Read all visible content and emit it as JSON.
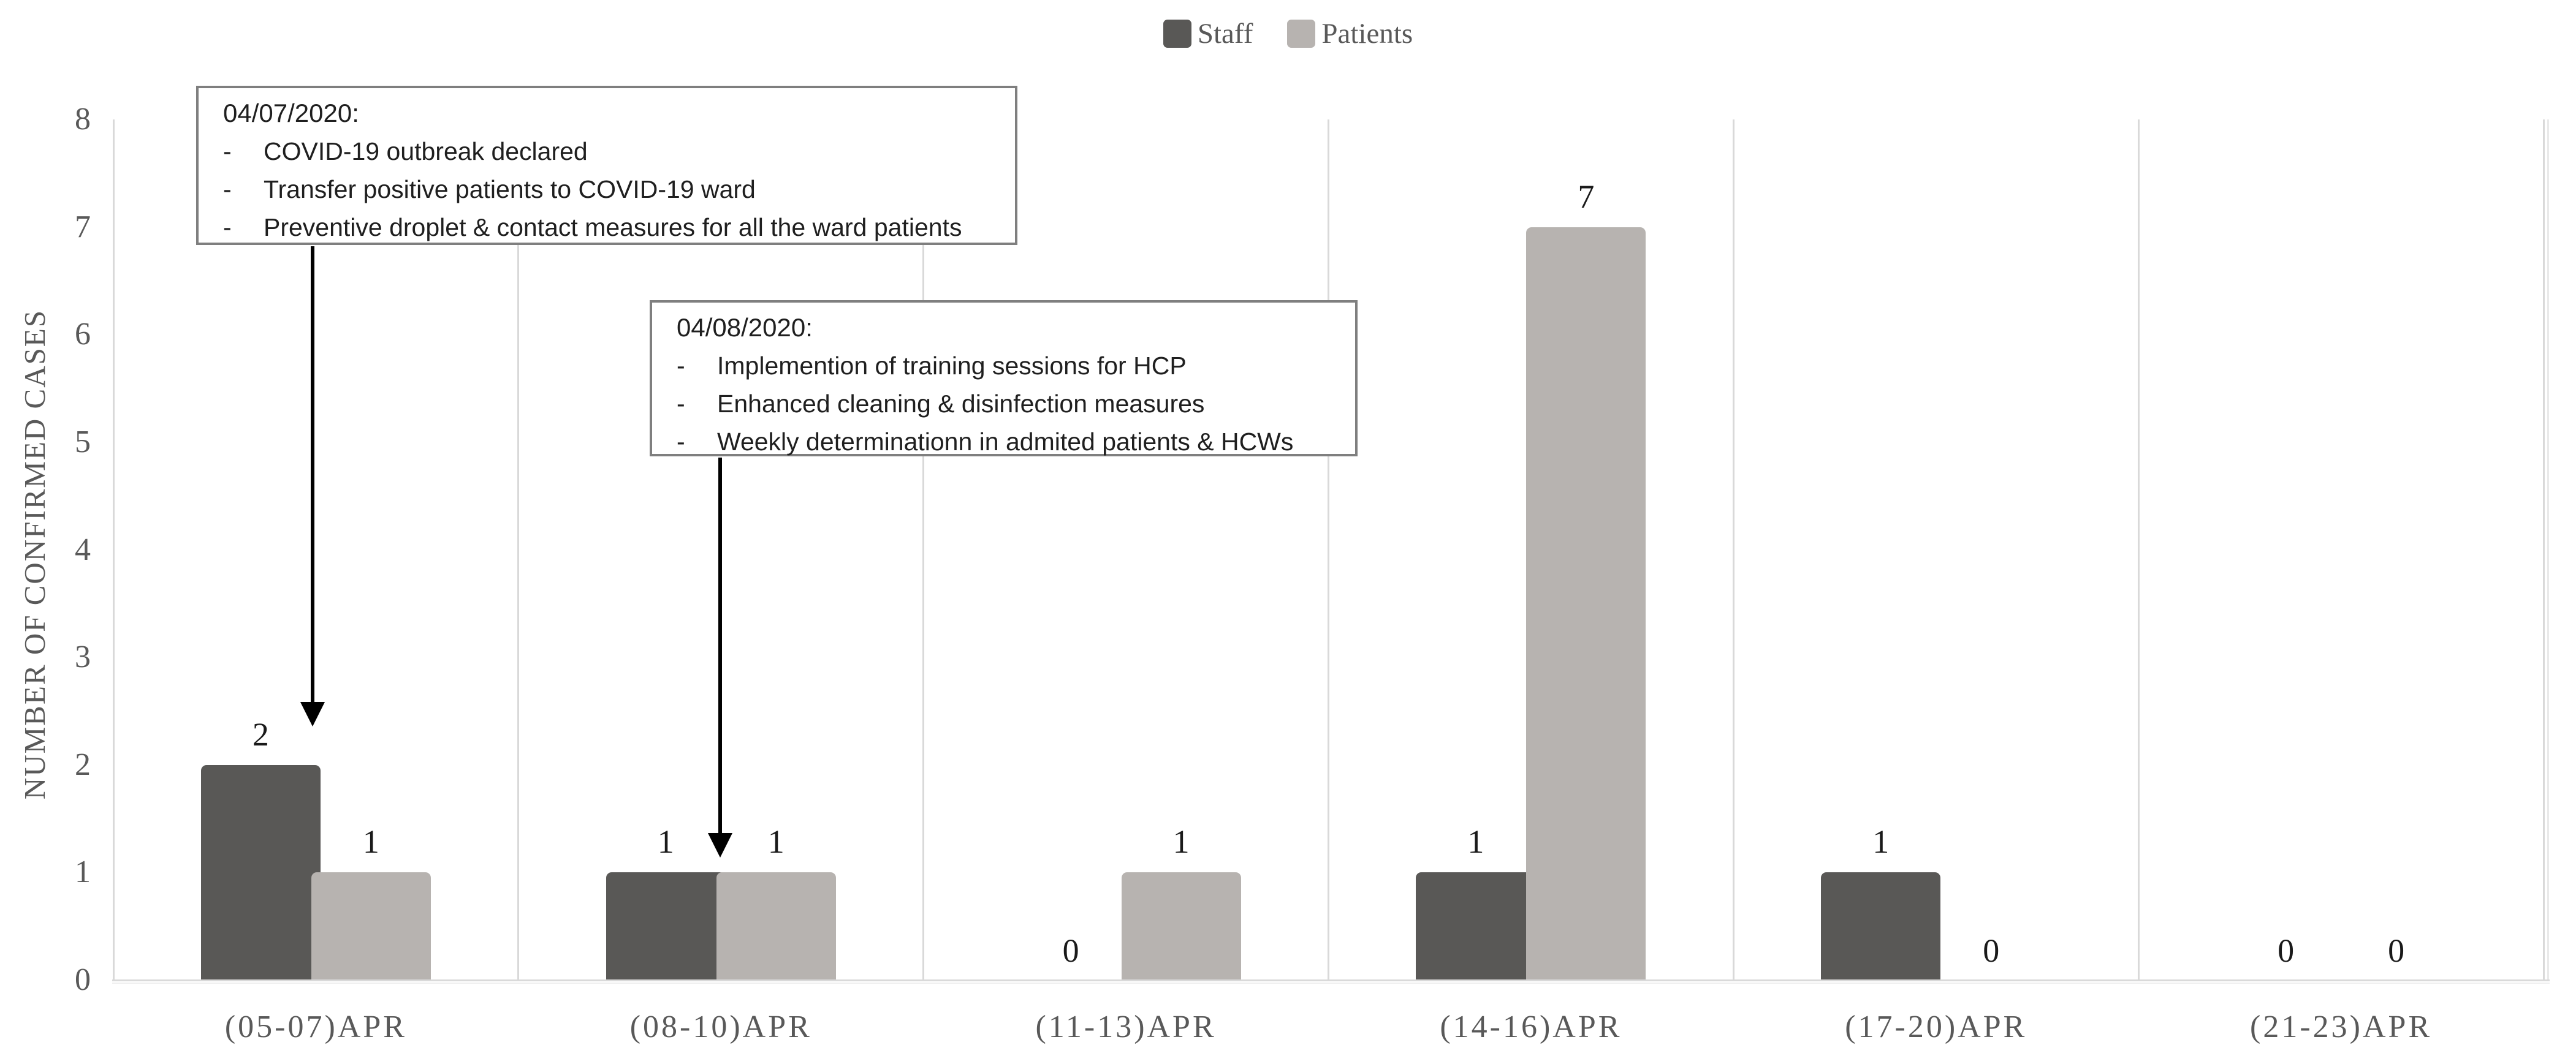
{
  "legend": {
    "items": [
      {
        "label": "Staff",
        "color": "#595856"
      },
      {
        "label": "Patients",
        "color": "#b7b3b0"
      }
    ]
  },
  "y_axis": {
    "title": "NUMBER OF CONFIRMED CASES",
    "ticks": [
      "0",
      "1",
      "2",
      "3",
      "4",
      "5",
      "6",
      "7",
      "8"
    ]
  },
  "annotations": [
    {
      "title": "04/07/2020:",
      "dash": "-",
      "bullets": [
        "COVID-19 outbreak declared",
        "Transfer positive patients to COVID-19 ward",
        "Preventive droplet & contact measures for all the ward patients"
      ]
    },
    {
      "title": "04/08/2020:",
      "dash": "-",
      "bullets": [
        "Implemention of training sessions for HCP",
        "Enhanced cleaning & disinfection measures",
        "Weekly determinationn in admited patients & HCWs"
      ]
    }
  ],
  "chart_data": {
    "type": "bar",
    "categories": [
      "(05-07)APR",
      "(08-10)APR",
      "(11-13)APR",
      "(14-16)APR",
      "(17-20)APR",
      "(21-23)APR"
    ],
    "series": [
      {
        "name": "Staff",
        "color": "#595856",
        "values": [
          2,
          1,
          0,
          1,
          1,
          0
        ]
      },
      {
        "name": "Patients",
        "color": "#b7b3b0",
        "values": [
          1,
          1,
          1,
          7,
          0,
          0
        ]
      }
    ],
    "title": "",
    "xlabel": "",
    "ylabel": "NUMBER OF CONFIRMED CASES",
    "ylim": [
      0,
      8
    ],
    "data_labels": true,
    "grid": "vertical-category-separators-only",
    "legend_position": "top-center"
  },
  "colors": {
    "staff_bar": "#595856",
    "patients_bar": "#b7b3b0",
    "axis_text": "#595959",
    "gridline": "#d9d9d9",
    "data_label": "#1a1a1a",
    "annotation_border": "#7f7f7f",
    "arrow": "#000000",
    "background": "#ffffff"
  }
}
